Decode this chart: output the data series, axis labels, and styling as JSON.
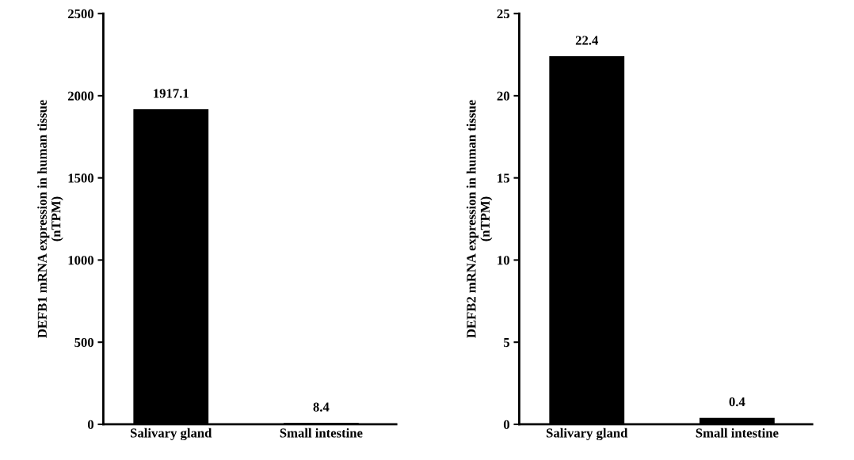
{
  "chart_data": [
    {
      "type": "bar",
      "ylabel": "DEFB1 mRNA expression in human tissue\n(nTPM)",
      "categories": [
        "Salivary gland",
        "Small intestine"
      ],
      "values": [
        1917.1,
        8.4
      ],
      "color": "#000000",
      "ylim": [
        0,
        2500
      ],
      "yticks": [
        0,
        500,
        1000,
        1500,
        2000,
        2500
      ],
      "data_labels": true,
      "grid": false,
      "legend": false
    },
    {
      "type": "bar",
      "ylabel": "DEFB2 mRNA expression in human tissue\n(nTPM)",
      "categories": [
        "Salivary gland",
        "Small intestine"
      ],
      "values": [
        22.4,
        0.4
      ],
      "color": "#000000",
      "ylim": [
        0,
        25
      ],
      "yticks": [
        0,
        5,
        10,
        15,
        20,
        25
      ],
      "data_labels": true,
      "grid": false,
      "legend": false
    }
  ]
}
